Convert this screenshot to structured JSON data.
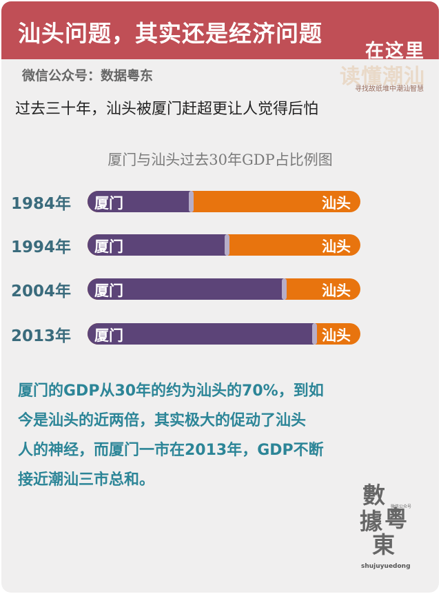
{
  "header": {
    "title": "汕头问题，其实还是经济问题",
    "brand_top": "在这里",
    "brand_main": "读懂潮汕",
    "brand_sub": "寻找故纸堆中潮汕智慧",
    "account": "微信公众号：数据粤东"
  },
  "lead_text": "过去三十年，汕头被厦门赶超更让人觉得后怕",
  "colors": {
    "banner": "#c04f56",
    "xiamen": "#5c4478",
    "shantou": "#e8740e",
    "body_text": "#2c8597"
  },
  "chart_data": {
    "type": "bar",
    "orientation": "horizontal",
    "stacked": true,
    "normalized": true,
    "title": "厦门与汕头过去30年GDP占比例图",
    "categories": [
      "1984年",
      "1994年",
      "2004年",
      "2013年"
    ],
    "series": [
      {
        "name": "厦门",
        "values": [
          0.38,
          0.51,
          0.72,
          0.83
        ]
      },
      {
        "name": "汕头",
        "values": [
          0.62,
          0.49,
          0.28,
          0.17
        ]
      }
    ],
    "xlabel": "",
    "ylabel": "",
    "xlim": [
      0,
      1
    ]
  },
  "paragraph": [
    "厦门的GDP从30年的约为汕头的70%，到如",
    "今是汕头的近两倍，其实极大的促动了汕头",
    "人的神经，而厦门一市在2013年，GDP不断",
    "接近潮汕三市总和。"
  ],
  "seal": {
    "chars": [
      "數",
      "據",
      "粵",
      "東"
    ],
    "small": "微信公众号",
    "latin": "shujuyuedong"
  }
}
